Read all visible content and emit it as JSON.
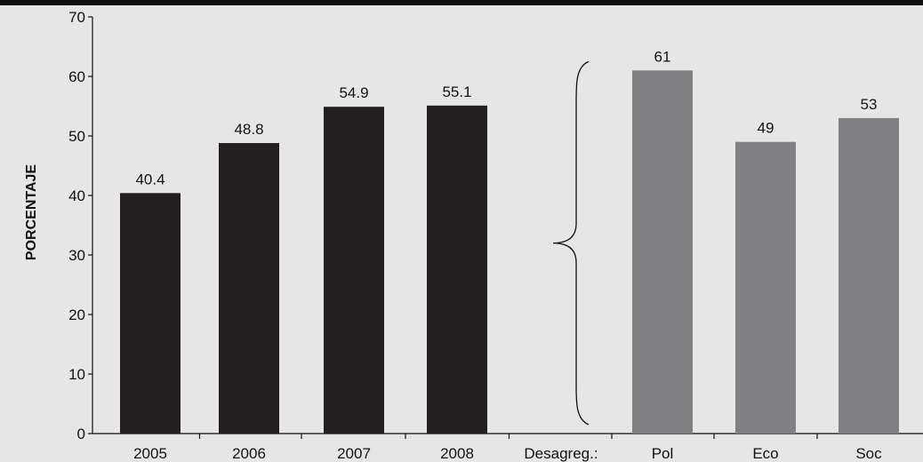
{
  "chart_data": {
    "type": "bar",
    "ylabel": "PORCENTAJE",
    "xlabel": "",
    "ylim": [
      0,
      70
    ],
    "yticks": [
      0,
      10,
      20,
      30,
      40,
      50,
      60,
      70
    ],
    "categories": [
      "2005",
      "2006",
      "2007",
      "2008",
      "Desagreg.:",
      "Pol",
      "Eco",
      "Soc"
    ],
    "values": [
      40.4,
      48.8,
      54.9,
      55.1,
      null,
      61,
      49,
      53
    ],
    "data_labels": [
      "40.4",
      "48.8",
      "54.9",
      "55.1",
      "",
      "61",
      "49",
      "53"
    ],
    "groups": [
      {
        "categories": [
          "2005",
          "2006",
          "2007",
          "2008"
        ],
        "color": "#231f20"
      },
      {
        "categories": [
          "Pol",
          "Eco",
          "Soc"
        ],
        "color": "#808083"
      }
    ],
    "annotation": "brace",
    "grid": false,
    "background": "#e6e6e6"
  }
}
